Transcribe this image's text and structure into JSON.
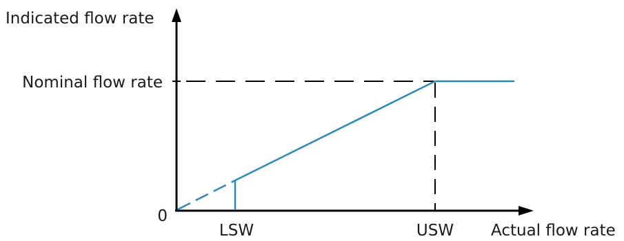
{
  "labels": {
    "y_axis": "Indicated flow rate",
    "x_axis": "Actual flow rate",
    "nominal": "Nominal flow rate",
    "origin": "0",
    "lsw": "LSW",
    "usw": "USW"
  },
  "colors": {
    "curve": "#2b88bd",
    "axis": "#000000",
    "text": "#1a1a1a"
  }
}
